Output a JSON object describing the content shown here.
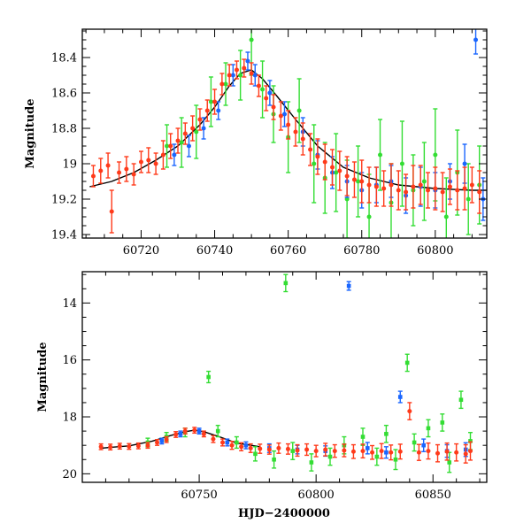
{
  "chart_data": [
    {
      "type": "scatter",
      "panel": "top",
      "title": "",
      "xlabel": "",
      "ylabel": "Magnitude",
      "xlim": [
        60704,
        60814
      ],
      "ylim": [
        19.42,
        18.24
      ],
      "y_inverted": true,
      "xticks": [
        60720,
        60740,
        60760,
        60780,
        60800
      ],
      "yticks": [
        18.4,
        18.6,
        18.8,
        19,
        19.2,
        19.4
      ],
      "ytick_labels": [
        "18.4",
        "18.6",
        "18.8",
        "19",
        "19.2",
        "19.4"
      ],
      "grid": false,
      "legend": "none",
      "series": [
        {
          "color": "#ff3a1a",
          "marker": "circle",
          "x": [
            60707,
            60709,
            60711,
            60712,
            60714,
            60716,
            60718,
            60720,
            60722,
            60724,
            60726,
            60728,
            60730,
            60732,
            60734,
            60736,
            60738,
            60740,
            60742,
            60744,
            60746,
            60748,
            60750,
            60752,
            60754,
            60756,
            60758,
            60760,
            60762,
            60764,
            60766,
            60768,
            60770,
            60772,
            60774,
            60776,
            60778,
            60780,
            60782,
            60784,
            60786,
            60788,
            60790,
            60792,
            60794,
            60796,
            60798,
            60800,
            60802,
            60804,
            60806,
            60808,
            60810,
            60812
          ],
          "y": [
            19.07,
            19.04,
            19.01,
            19.27,
            19.05,
            19.03,
            19.06,
            18.99,
            18.98,
            19.0,
            18.95,
            18.9,
            18.87,
            18.83,
            18.8,
            18.75,
            18.7,
            18.65,
            18.55,
            18.5,
            18.47,
            18.46,
            18.49,
            18.56,
            18.63,
            18.68,
            18.73,
            18.78,
            18.82,
            18.86,
            18.92,
            18.96,
            18.99,
            19.02,
            19.04,
            19.07,
            19.09,
            19.1,
            19.12,
            19.13,
            19.14,
            19.12,
            19.15,
            19.16,
            19.13,
            19.12,
            19.15,
            19.14,
            19.16,
            19.13,
            19.15,
            19.14,
            19.12,
            19.16
          ],
          "err": [
            0.06,
            0.07,
            0.07,
            0.12,
            0.06,
            0.07,
            0.06,
            0.06,
            0.07,
            0.06,
            0.08,
            0.07,
            0.07,
            0.06,
            0.07,
            0.06,
            0.06,
            0.07,
            0.06,
            0.06,
            0.05,
            0.05,
            0.06,
            0.06,
            0.07,
            0.07,
            0.08,
            0.08,
            0.08,
            0.09,
            0.09,
            0.1,
            0.1,
            0.1,
            0.11,
            0.11,
            0.1,
            0.12,
            0.1,
            0.11,
            0.1,
            0.12,
            0.11,
            0.1,
            0.12,
            0.11,
            0.1,
            0.12,
            0.11,
            0.1,
            0.11,
            0.12,
            0.1,
            0.12
          ]
        },
        {
          "color": "#33dd33",
          "marker": "circle",
          "x": [
            60727,
            60731,
            60735,
            60739,
            60743,
            60747,
            60750,
            60753,
            60756,
            60760,
            60763,
            60767,
            60770,
            60773,
            60776,
            60779,
            60782,
            60785,
            60788,
            60791,
            60794,
            60797,
            60800,
            60803,
            60806,
            60809,
            60812
          ],
          "y": [
            18.9,
            18.88,
            18.82,
            18.65,
            18.55,
            18.5,
            18.3,
            18.58,
            18.72,
            18.85,
            18.7,
            19.0,
            19.08,
            19.05,
            19.2,
            19.1,
            19.3,
            18.95,
            19.22,
            19.0,
            19.15,
            19.1,
            18.95,
            19.3,
            19.05,
            19.2,
            19.12
          ],
          "err": [
            0.12,
            0.14,
            0.15,
            0.14,
            0.12,
            0.14,
            0.2,
            0.16,
            0.16,
            0.2,
            0.18,
            0.22,
            0.2,
            0.22,
            0.22,
            0.2,
            0.24,
            0.2,
            0.22,
            0.24,
            0.2,
            0.22,
            0.26,
            0.22,
            0.24,
            0.2,
            0.22
          ]
        },
        {
          "color": "#1a66ff",
          "marker": "circle",
          "x": [
            60729,
            60733,
            60737,
            60741,
            60745,
            60749,
            60751,
            60755,
            60759,
            60764,
            60768,
            60772,
            60776,
            60780,
            60784,
            60788,
            60792,
            60796,
            60800,
            60804,
            60808,
            60811,
            60813
          ],
          "y": [
            18.95,
            18.9,
            18.8,
            18.7,
            18.5,
            18.42,
            18.5,
            18.6,
            18.72,
            18.82,
            18.95,
            19.05,
            19.1,
            19.15,
            19.12,
            19.1,
            19.18,
            19.13,
            19.15,
            19.1,
            19.0,
            18.3,
            19.2
          ],
          "err": [
            0.06,
            0.06,
            0.06,
            0.05,
            0.06,
            0.05,
            0.06,
            0.07,
            0.07,
            0.08,
            0.08,
            0.09,
            0.09,
            0.1,
            0.1,
            0.09,
            0.1,
            0.11,
            0.1,
            0.1,
            0.11,
            0.08,
            0.12
          ]
        }
      ],
      "model_curve": {
        "color": "#000000",
        "x": [
          60706,
          60712,
          60718,
          60724,
          60730,
          60736,
          60740,
          60744,
          60747,
          60750,
          60753,
          60757,
          60762,
          60768,
          60775,
          60782,
          60790,
          60800,
          60810,
          60814
        ],
        "y": [
          19.13,
          19.1,
          19.05,
          18.98,
          18.9,
          18.78,
          18.68,
          18.56,
          18.49,
          18.47,
          18.52,
          18.62,
          18.75,
          18.9,
          19.02,
          19.08,
          19.12,
          19.14,
          19.15,
          19.15
        ]
      }
    },
    {
      "type": "scatter",
      "panel": "bottom",
      "title": "",
      "xlabel": "HJD−2400000",
      "ylabel": "Magnitude",
      "xlim": [
        60700,
        60873
      ],
      "ylim": [
        20.3,
        12.9
      ],
      "y_inverted": true,
      "xticks": [
        60750,
        60800,
        60850
      ],
      "yticks": [
        14,
        16,
        18,
        20
      ],
      "ytick_labels": [
        "14",
        "16",
        "18",
        "20"
      ],
      "grid": false,
      "legend": "none",
      "series": [
        {
          "color": "#ff3a1a",
          "marker": "circle",
          "x": [
            60708,
            60712,
            60716,
            60720,
            60724,
            60728,
            60732,
            60736,
            60740,
            60744,
            60748,
            60752,
            60756,
            60760,
            60764,
            60768,
            60772,
            60776,
            60780,
            60784,
            60788,
            60792,
            60796,
            60800,
            60804,
            60808,
            60812,
            60816,
            60820,
            60824,
            60828,
            60832,
            60836,
            60840,
            60844,
            60848,
            60852,
            60856,
            60860,
            60864,
            60866
          ],
          "y": [
            19.05,
            19.06,
            19.03,
            19.04,
            19.02,
            19.0,
            18.9,
            18.8,
            18.62,
            18.5,
            18.47,
            18.6,
            18.78,
            18.9,
            19.0,
            19.05,
            19.1,
            19.12,
            19.15,
            19.1,
            19.13,
            19.18,
            19.15,
            19.2,
            19.15,
            19.2,
            19.18,
            19.22,
            19.2,
            19.25,
            19.2,
            19.25,
            19.22,
            17.8,
            19.25,
            19.2,
            19.28,
            19.22,
            19.25,
            19.3,
            19.2
          ],
          "err": [
            0.1,
            0.1,
            0.1,
            0.1,
            0.1,
            0.1,
            0.1,
            0.1,
            0.1,
            0.1,
            0.1,
            0.1,
            0.12,
            0.12,
            0.14,
            0.14,
            0.15,
            0.16,
            0.16,
            0.18,
            0.18,
            0.2,
            0.2,
            0.2,
            0.22,
            0.22,
            0.22,
            0.24,
            0.24,
            0.24,
            0.26,
            0.26,
            0.26,
            0.3,
            0.28,
            0.28,
            0.3,
            0.3,
            0.3,
            0.32,
            0.32
          ]
        },
        {
          "color": "#33dd33",
          "marker": "square",
          "x": [
            60728,
            60736,
            60744,
            60754,
            60758,
            60766,
            60774,
            60782,
            60787,
            60790,
            60798,
            60806,
            60812,
            60820,
            60826,
            60830,
            60834,
            60839,
            60842,
            60848,
            60854,
            60857,
            60862,
            60866
          ],
          "y": [
            18.9,
            18.7,
            18.55,
            16.6,
            18.5,
            18.9,
            19.3,
            19.5,
            13.3,
            19.2,
            19.6,
            19.4,
            19.0,
            18.7,
            19.4,
            18.6,
            19.5,
            16.1,
            18.9,
            18.4,
            18.2,
            19.6,
            17.4,
            18.85
          ],
          "err": [
            0.15,
            0.15,
            0.15,
            0.2,
            0.2,
            0.2,
            0.25,
            0.3,
            0.3,
            0.3,
            0.3,
            0.3,
            0.3,
            0.3,
            0.3,
            0.3,
            0.35,
            0.3,
            0.3,
            0.3,
            0.3,
            0.35,
            0.3,
            0.3
          ]
        },
        {
          "color": "#1a66ff",
          "marker": "square",
          "x": [
            60734,
            60742,
            60750,
            60762,
            60770,
            60780,
            60792,
            60804,
            60814,
            60822,
            60830,
            60836,
            60846,
            60856,
            60864
          ],
          "y": [
            18.85,
            18.6,
            18.5,
            18.9,
            19.0,
            19.1,
            19.15,
            19.2,
            13.4,
            19.1,
            19.25,
            17.3,
            19.0,
            19.2,
            19.15
          ],
          "err": [
            0.1,
            0.1,
            0.1,
            0.12,
            0.12,
            0.15,
            0.15,
            0.18,
            0.15,
            0.2,
            0.2,
            0.2,
            0.22,
            0.22,
            0.24
          ]
        }
      ],
      "model_curve": {
        "color": "#000000",
        "x": [
          60708,
          60720,
          60730,
          60738,
          60744,
          60748,
          60752,
          60758,
          60766,
          60776
        ],
        "y": [
          19.1,
          19.02,
          18.85,
          18.65,
          18.52,
          18.47,
          18.52,
          18.68,
          18.92,
          19.05
        ]
      }
    }
  ]
}
